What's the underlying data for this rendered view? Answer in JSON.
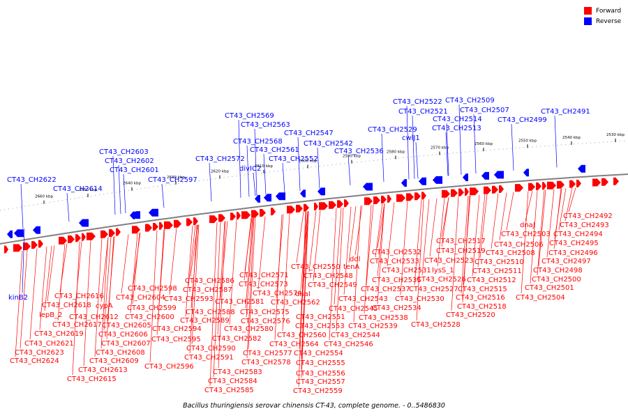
{
  "caption": "Bacillus thuringiensis serovar chinensis CT-43, complete genome. - 0..5486830",
  "legend": {
    "forward_label": "Forward",
    "reverse_label": "Reverse",
    "forward_color": "#ff0000",
    "reverse_color": "#0000ff"
  },
  "colors": {
    "forward": "#ff0000",
    "reverse": "#0000ff",
    "backbone": "#808080"
  },
  "kbp_labels": [
    "2530 kbp",
    "2540 kbp",
    "2550 kbp",
    "2560 kbp",
    "2570 kbp",
    "2580 kbp",
    "2590 kbp",
    "2600 kbp",
    "2610 kbp",
    "2620 kbp",
    "2630 kbp",
    "2640 kbp",
    "2650 kbp",
    "2660 kbp"
  ],
  "reverse_genes": [
    "CT43_CH2491",
    "CT43_CH2499",
    "CT43_CH2507",
    "CT43_CH2509",
    "CT43_CH2513",
    "CT43_CH2514",
    "CT43_CH2521",
    "CT43_CH2522",
    "cwlJ1",
    "CT43_CH2529",
    "CT43_CH2536",
    "CT43_CH2542",
    "CT43_CH2547",
    "CT43_CH2552",
    "CT43_CH2561",
    "CT43_CH2563",
    "CT43_CH2568",
    "CT43_CH2569",
    "divIC2",
    "CT43_CH2572",
    "CT43_CH2597",
    "CT43_CH2601",
    "CT43_CH2602",
    "CT43_CH2603",
    "CT43_CH2614",
    "CT43_CH2622",
    "kinB2"
  ],
  "forward_genes": [
    "CT43_CH2492",
    "CT43_CH2493",
    "CT43_CH2494",
    "CT43_CH2495",
    "CT43_CH2496",
    "CT43_CH2497",
    "CT43_CH2498",
    "CT43_CH2500",
    "CT43_CH2501",
    "CT43_CH2504",
    "dnaJ",
    "CT43_CH2503",
    "CT43_CH2506",
    "CT43_CH2508",
    "CT43_CH2510",
    "CT43_CH2511",
    "CT43_CH2512",
    "CT43_CH2515",
    "CT43_CH2516",
    "CT43_CH2518",
    "CT43_CH2520",
    "CT43_CH2517",
    "CT43_CH2519",
    "CT43_CH2523",
    "lysS_1",
    "CT43_CH2526",
    "CT43_CH2527",
    "CT43_CH2530",
    "CT43_CH2528",
    "CT43_CH2532",
    "CT43_CH2533",
    "CT43_CH2531",
    "CT43_CH2535",
    "CT43_CH2537",
    "CT43_CH2534",
    "CT43_CH2538",
    "CT43_CH2539",
    "ddl",
    "tenA",
    "CT43_CH2543",
    "CT43_CH2545",
    "CT43_CH2544",
    "CT43_CH2546",
    "CT43_CH2550",
    "CT43_CH2548",
    "CT43_CH2549",
    "dnaI",
    "CT43_CH2562",
    "CT43_CH2551",
    "CT43_CH2553",
    "CT43_CH2560",
    "CT43_CH2564",
    "CT43_CH2554",
    "CT43_CH2555",
    "CT43_CH2556",
    "CT43_CH2557",
    "CT43_CH2559",
    "CT43_CH2571",
    "CT43_CH2573",
    "CT43_CH2574",
    "CT43_CH2575",
    "CT43_CH2576",
    "CT43_CH2580",
    "CT43_CH2577",
    "CT43_CH2578",
    "CT43_CH2586",
    "CT43_CH2587",
    "CT43_CH2581",
    "CT43_CH2593",
    "CT43_CH2588",
    "CT43_CH2589",
    "CT43_CH2582",
    "CT43_CH2594",
    "CT43_CH2590",
    "CT43_CH2591",
    "CT43_CH2583",
    "CT43_CH2584",
    "CT43_CH2585",
    "CT43_CH2598",
    "CT43_CH2599",
    "CT43_CH2600",
    "CT43_CH2604",
    "CT43_CH2605",
    "CT43_CH2606",
    "CT43_CH2607",
    "CT43_CH2595",
    "CT43_CH2596",
    "CT43_CH2608",
    "CT43_CH2609",
    "CT43_CH2613",
    "CT43_CH2615",
    "CT43_CH2616",
    "cypA",
    "CT43_CH2612",
    "CT43_CH2618",
    "lepB_2",
    "CT43_CH2617",
    "CT43_CH2619",
    "CT43_CH2621",
    "CT43_CH2623",
    "CT43_CH2624"
  ]
}
